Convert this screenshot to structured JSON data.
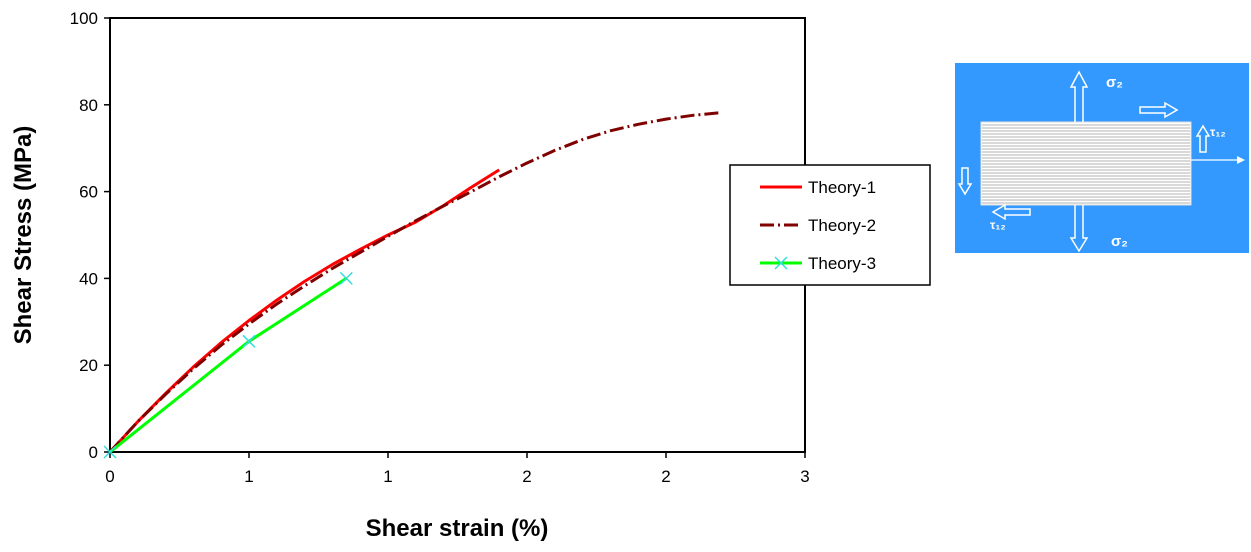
{
  "chart_data": {
    "type": "line",
    "xlabel": "Shear strain (%)",
    "ylabel": "Shear Stress (MPa)",
    "xlim": [
      0,
      2.5
    ],
    "ylim": [
      0,
      100
    ],
    "x_tick_labels": [
      "0",
      "1",
      "1",
      "2",
      "2",
      "3"
    ],
    "y_tick_labels": [
      "0",
      "20",
      "40",
      "60",
      "80",
      "100"
    ],
    "legend_position": "right",
    "grid": false,
    "series": [
      {
        "name": "Theory-1",
        "color": "#ff0000",
        "style": "solid",
        "marker": "none",
        "x": [
          0,
          0.1,
          0.2,
          0.3,
          0.4,
          0.5,
          0.6,
          0.7,
          0.8,
          0.9,
          1.0,
          1.1,
          1.2,
          1.3,
          1.4
        ],
        "y": [
          0,
          7,
          13.5,
          19.6,
          25.2,
          30.3,
          35,
          39.3,
          43.2,
          46.7,
          50,
          53,
          56.8,
          61,
          65
        ]
      },
      {
        "name": "Theory-2",
        "color": "#800000",
        "style": "dash-dot",
        "marker": "none",
        "x": [
          0,
          0.1,
          0.2,
          0.3,
          0.4,
          0.5,
          0.6,
          0.7,
          0.8,
          0.9,
          1.0,
          1.1,
          1.2,
          1.3,
          1.4,
          1.5,
          1.6,
          1.7,
          1.8,
          1.9,
          2.0,
          2.1,
          2.2
        ],
        "y": [
          0,
          7,
          13.3,
          19.2,
          24.6,
          29.5,
          34.1,
          38.3,
          42.3,
          46,
          49.7,
          53.3,
          56.7,
          60,
          63.4,
          66.6,
          69.5,
          72,
          74,
          75.5,
          76.7,
          77.6,
          78.2
        ]
      },
      {
        "name": "Theory-3",
        "color": "#00ff00",
        "marker_color": "#33dddd",
        "style": "solid",
        "marker": "x",
        "x": [
          0,
          0.5,
          0.85
        ],
        "y": [
          0,
          25.5,
          40
        ]
      }
    ]
  },
  "inset": {
    "background_color": "#3399ff",
    "label_sigma_top": "σ₂",
    "label_sigma_bottom": "σ₂",
    "label_tau_right": "τ₁₂",
    "label_tau_left": "τ₁₂"
  }
}
